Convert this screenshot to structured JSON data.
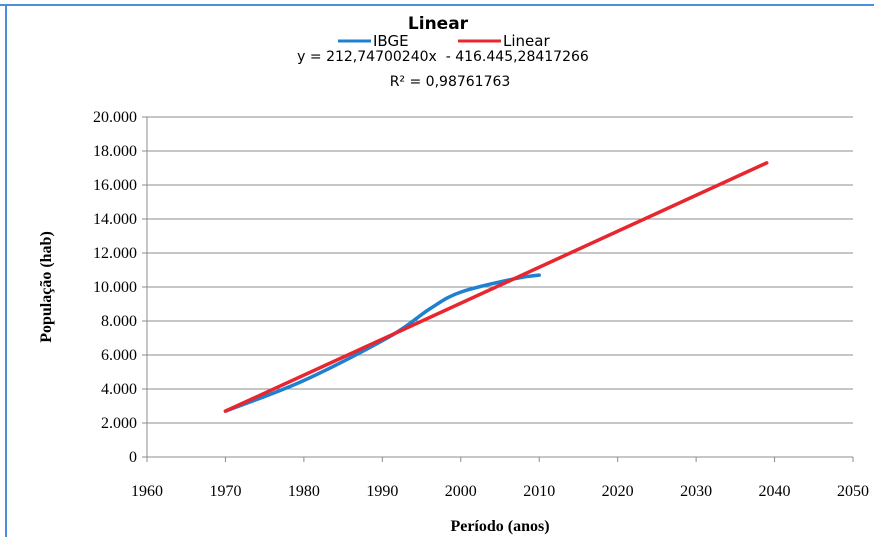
{
  "chart_data": {
    "type": "line",
    "title": "Linear",
    "legend": [
      {
        "name": "IBGE",
        "color": "#1f7fd1"
      },
      {
        "name": "Linear",
        "color": "#e8262f"
      }
    ],
    "legend_position": "top",
    "equation": "y = 212,74700240x  - 416.445,28417266",
    "r_squared": "R² = 0,98761763",
    "xlabel": "Período (anos)",
    "ylabel": "População (hab)",
    "xlim": [
      1960,
      2050
    ],
    "ylim": [
      0,
      20000
    ],
    "x_ticks": [
      "1960",
      "1970",
      "1980",
      "1990",
      "2000",
      "2010",
      "2020",
      "2030",
      "2040",
      "2050"
    ],
    "x_tick_values": [
      1960,
      1970,
      1980,
      1990,
      2000,
      2010,
      2020,
      2030,
      2040,
      2050
    ],
    "y_ticks": [
      "0",
      "2.000",
      "4.000",
      "6.000",
      "8.000",
      "10.000",
      "12.000",
      "14.000",
      "16.000",
      "18.000",
      "20.000"
    ],
    "y_tick_values": [
      0,
      2000,
      4000,
      6000,
      8000,
      10000,
      12000,
      14000,
      16000,
      18000,
      20000
    ],
    "grid": "horizontal",
    "series": [
      {
        "name": "IBGE",
        "color": "#1f7fd1",
        "x": [
          1970,
          1980,
          1991,
          1996,
          2000,
          2007,
          2010
        ],
        "values": [
          2700,
          4500,
          7100,
          8700,
          9700,
          10500,
          10700
        ]
      },
      {
        "name": "Linear",
        "color": "#e8262f",
        "x": [
          1970,
          2039
        ],
        "values": [
          2700,
          17300
        ]
      }
    ]
  }
}
